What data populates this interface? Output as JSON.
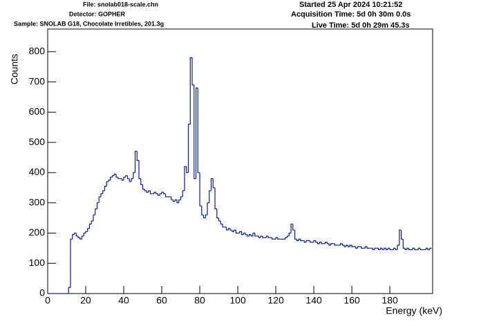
{
  "chart_data": {
    "type": "histogram",
    "annotations": [
      "File: snolab018-scale.chn",
      "Detector: GOPHER",
      "Sample: SNOLAB G18, Chocolate Irretibles, 201.3g",
      "Started 25 Apr 2024 10:21:52",
      "Acquisition Time: 5d 0h 30m 0.0s",
      "Live Time: 5d 0h 29m 45.3s"
    ],
    "x_label": "Energy (keV)",
    "y_label": "Counts",
    "color": "#0a1a8c",
    "xlim": [
      0,
      202.5
    ],
    "ylim": [
      0,
      875
    ],
    "xticks": [
      0,
      20,
      40,
      60,
      80,
      100,
      120,
      140,
      160,
      180
    ],
    "yticks": [
      0,
      100,
      200,
      300,
      400,
      500,
      600,
      700,
      800
    ],
    "bins": [
      0,
      1,
      2,
      3,
      4,
      5,
      6,
      7,
      8,
      9,
      10,
      11,
      12,
      13,
      14,
      15,
      16,
      17,
      18,
      19,
      20,
      21,
      22,
      23,
      24,
      25,
      26,
      27,
      28,
      29,
      30,
      31,
      32,
      33,
      34,
      35,
      36,
      37,
      38,
      39,
      40,
      41,
      42,
      43,
      44,
      45,
      46,
      47,
      48,
      49,
      50,
      51,
      52,
      53,
      54,
      55,
      56,
      57,
      58,
      59,
      60,
      61,
      62,
      63,
      64,
      65,
      66,
      67,
      68,
      69,
      70,
      71,
      72,
      73,
      74,
      75,
      76,
      77,
      78,
      79,
      80,
      81,
      82,
      83,
      84,
      85,
      86,
      87,
      88,
      89,
      90,
      91,
      92,
      93,
      94,
      95,
      96,
      97,
      98,
      99,
      100,
      101,
      102,
      103,
      104,
      105,
      106,
      107,
      108,
      109,
      110,
      111,
      112,
      113,
      114,
      115,
      116,
      117,
      118,
      119,
      120,
      121,
      122,
      123,
      124,
      125,
      126,
      127,
      128,
      129,
      130,
      131,
      132,
      133,
      134,
      135,
      136,
      137,
      138,
      139,
      140,
      141,
      142,
      143,
      144,
      145,
      146,
      147,
      148,
      149,
      150,
      151,
      152,
      153,
      154,
      155,
      156,
      157,
      158,
      159,
      160,
      161,
      162,
      163,
      164,
      165,
      166,
      167,
      168,
      169,
      170,
      171,
      172,
      173,
      174,
      175,
      176,
      177,
      178,
      179,
      180,
      181,
      182,
      183,
      184,
      185,
      186,
      187,
      188,
      189,
      190,
      191,
      192,
      193,
      194,
      195,
      196,
      197,
      198,
      199,
      200,
      201,
      202
    ],
    "values": [
      0,
      0,
      0,
      0,
      0,
      0,
      0,
      0,
      0,
      0,
      0,
      20,
      180,
      195,
      200,
      190,
      185,
      180,
      190,
      200,
      205,
      215,
      230,
      240,
      260,
      280,
      300,
      320,
      330,
      340,
      355,
      370,
      375,
      385,
      390,
      395,
      385,
      380,
      380,
      375,
      385,
      390,
      380,
      370,
      380,
      400,
      470,
      440,
      380,
      360,
      345,
      340,
      335,
      340,
      330,
      330,
      335,
      330,
      325,
      330,
      335,
      330,
      320,
      320,
      320,
      310,
      305,
      310,
      300,
      310,
      320,
      340,
      420,
      400,
      560,
      780,
      690,
      380,
      680,
      400,
      290,
      260,
      250,
      260,
      300,
      340,
      380,
      350,
      280,
      250,
      240,
      230,
      220,
      220,
      210,
      215,
      210,
      205,
      210,
      200,
      200,
      205,
      195,
      200,
      195,
      190,
      195,
      190,
      200,
      190,
      190,
      185,
      190,
      185,
      185,
      190,
      185,
      185,
      180,
      180,
      185,
      180,
      180,
      180,
      180,
      185,
      190,
      200,
      230,
      210,
      180,
      175,
      180,
      175,
      175,
      170,
      175,
      175,
      170,
      170,
      175,
      170,
      165,
      170,
      165,
      165,
      170,
      165,
      160,
      165,
      165,
      160,
      160,
      160,
      165,
      160,
      155,
      160,
      155,
      160,
      155,
      155,
      150,
      155,
      155,
      150,
      150,
      155,
      150,
      150,
      150,
      145,
      150,
      150,
      145,
      150,
      145,
      150,
      145,
      150,
      145,
      145,
      150,
      145,
      160,
      210,
      180,
      150,
      145,
      150,
      145,
      145,
      150,
      145,
      145,
      150,
      145,
      145,
      145,
      150,
      145,
      150
    ]
  }
}
